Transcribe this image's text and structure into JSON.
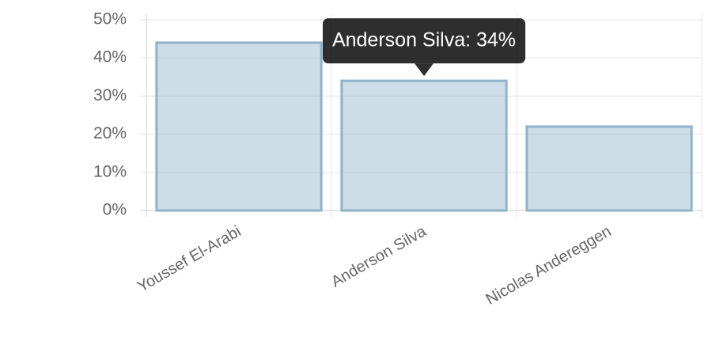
{
  "chart_data": {
    "type": "bar",
    "categories": [
      "Youssef El-Arabi",
      "Anderson Silva",
      "Nicolas Andereggen"
    ],
    "values": [
      44,
      34,
      22
    ],
    "color": "#8fb3c9",
    "ylim": [
      0,
      50
    ],
    "yticks": [
      {
        "value": 0,
        "label": "0%"
      },
      {
        "value": 10,
        "label": "10%"
      },
      {
        "value": 20,
        "label": "20%"
      },
      {
        "value": 30,
        "label": "30%"
      },
      {
        "value": 40,
        "label": "40%"
      },
      {
        "value": 50,
        "label": "50%"
      }
    ],
    "grid": true,
    "tooltip": "Anderson Silva: 34%"
  }
}
